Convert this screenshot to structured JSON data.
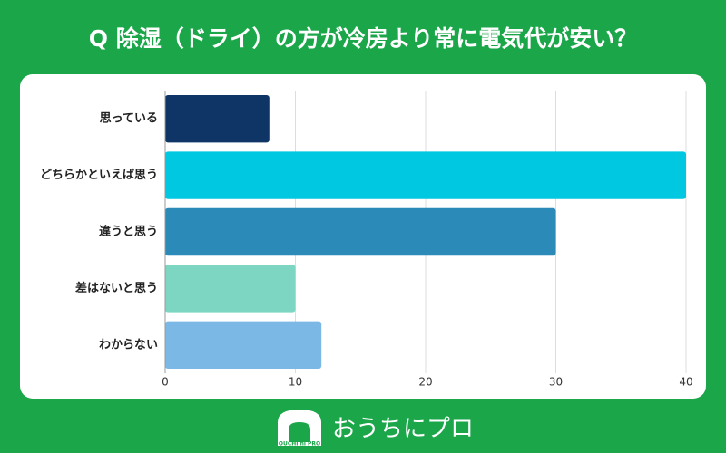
{
  "chart_data": {
    "type": "barh",
    "title": "Q 除湿（ドライ）の方が冷房より常に電気代が安い？",
    "categories": [
      "思っている",
      "どちらかといえば思う",
      "違うと思う",
      "差はないと思う",
      "わからない"
    ],
    "values": [
      8,
      40,
      30,
      10,
      12
    ],
    "colors": [
      "#0e3566",
      "#00c8e0",
      "#2b8ab8",
      "#7dd6c2",
      "#7bb8e6"
    ],
    "xlim": [
      0,
      40
    ],
    "xticks": [
      0,
      10,
      20,
      30,
      40
    ],
    "grid": true
  },
  "logo": {
    "name": "おうちにプロ",
    "sub": "OUCHI ni PRO"
  }
}
